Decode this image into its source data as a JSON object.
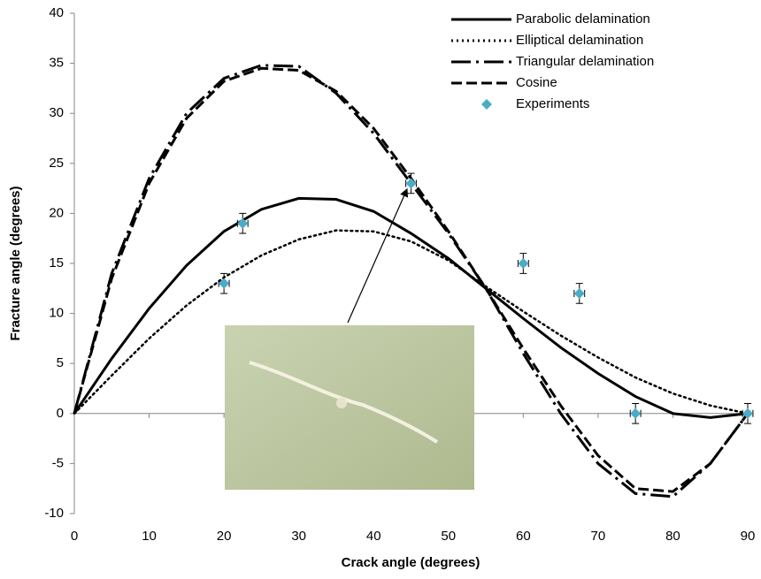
{
  "chart_data": {
    "type": "line",
    "xlabel": "Crack angle (degrees)",
    "ylabel": "Fracture angle (degrees)",
    "x": [
      0,
      5,
      10,
      15,
      20,
      25,
      30,
      35,
      40,
      45,
      50,
      55,
      60,
      65,
      70,
      75,
      80,
      85,
      90
    ],
    "series": [
      {
        "name": "Parabolic delamination",
        "color": "#000000",
        "line_style": "solid",
        "values": [
          0,
          5.5,
          10.5,
          14.8,
          18.2,
          20.4,
          21.5,
          21.4,
          20.2,
          18.0,
          15.5,
          12.5,
          9.5,
          6.6,
          4.0,
          1.7,
          0.0,
          -0.4,
          0
        ]
      },
      {
        "name": "Elliptical delamination",
        "color": "#000000",
        "line_style": "dotted",
        "values": [
          0,
          3.8,
          7.5,
          10.8,
          13.6,
          15.8,
          17.4,
          18.3,
          18.2,
          17.2,
          15.3,
          12.7,
          10.2,
          7.8,
          5.6,
          3.6,
          2.0,
          0.8,
          0
        ]
      },
      {
        "name": "Triangular delamination",
        "color": "#000000",
        "line_style": "dash-dot",
        "values": [
          0,
          14,
          23.5,
          30,
          33.5,
          34.8,
          34.7,
          32,
          28,
          23,
          18,
          12.5,
          6,
          0,
          -5,
          -8,
          -8.3,
          -5,
          0
        ]
      },
      {
        "name": "Cosine",
        "color": "#000000",
        "line_style": "dashed",
        "values": [
          0,
          13.5,
          23,
          29.5,
          33.2,
          34.5,
          34.3,
          32.2,
          28.5,
          23.5,
          18.2,
          12.5,
          6.5,
          0.8,
          -4.2,
          -7.5,
          -7.8,
          -5,
          0
        ]
      },
      {
        "name": "Experiments",
        "color": "#4bacc6",
        "line_style": "marker",
        "x": [
          20,
          22.5,
          45,
          60,
          67.5,
          75,
          90
        ],
        "values": [
          13,
          19,
          23,
          15,
          12,
          0,
          0
        ],
        "yerr": [
          1,
          1,
          1,
          1,
          1,
          1,
          1
        ],
        "xerr": [
          0.7,
          0.7,
          0.7,
          0.7,
          0.7,
          0.7,
          0.7
        ]
      }
    ],
    "xlim": [
      0,
      90
    ],
    "xticks": [
      0,
      10,
      20,
      30,
      40,
      50,
      60,
      70,
      80,
      90
    ],
    "ylim": [
      -10,
      40
    ],
    "yticks": [
      -10,
      -5,
      0,
      5,
      10,
      15,
      20,
      25,
      30,
      35,
      40
    ],
    "grid": false,
    "legend": "top-right"
  }
}
